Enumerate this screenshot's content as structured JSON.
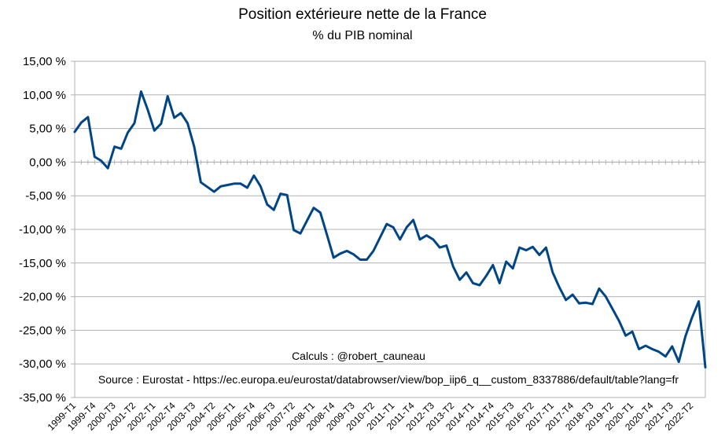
{
  "chart_data": {
    "type": "line",
    "title": "Position extérieure nette de la France",
    "subtitle": "% du PIB nominal",
    "xlabel": "",
    "ylabel": "",
    "ylim": [
      -35,
      15
    ],
    "grid": true,
    "legend": "none",
    "y_tick_labels": [
      "15,00 %",
      "10,00 %",
      "5,00 %",
      "0,00 %",
      "-5,00 %",
      "-10,00 %",
      "-15,00 %",
      "-20,00 %",
      "-25,00 %",
      "-30,00 %",
      "-35,00 %"
    ],
    "y_tick_values": [
      15,
      10,
      5,
      0,
      -5,
      -10,
      -15,
      -20,
      -25,
      -30,
      -35
    ],
    "x_tick_labels": [
      "1999-T1",
      "1999-T4",
      "2000-T3",
      "2001-T2",
      "2002-T1",
      "2002-T4",
      "2003-T3",
      "2004-T2",
      "2005-T1",
      "2005-T4",
      "2006-T3",
      "2007-T2",
      "2008-T1",
      "2008-T4",
      "2009-T3",
      "2010-T2",
      "2011-T1",
      "2011-T4",
      "2012-T3",
      "2013-T2",
      "2014-T1",
      "2014-T4",
      "2015-T3",
      "2016-T2",
      "2017-T1",
      "2017-T4",
      "2018-T3",
      "2019-T2",
      "2020-T1",
      "2020-T4",
      "2021-T3",
      "2022-T2"
    ],
    "series": [
      {
        "color": "#004586",
        "x": [
          "1999-T1",
          "1999-T2",
          "1999-T3",
          "1999-T4",
          "2000-T1",
          "2000-T2",
          "2000-T3",
          "2000-T4",
          "2001-T1",
          "2001-T2",
          "2001-T3",
          "2001-T4",
          "2002-T1",
          "2002-T2",
          "2002-T3",
          "2002-T4",
          "2003-T1",
          "2003-T2",
          "2003-T3",
          "2003-T4",
          "2004-T1",
          "2004-T2",
          "2004-T3",
          "2004-T4",
          "2005-T1",
          "2005-T2",
          "2005-T3",
          "2005-T4",
          "2006-T1",
          "2006-T2",
          "2006-T3",
          "2006-T4",
          "2007-T1",
          "2007-T2",
          "2007-T3",
          "2007-T4",
          "2008-T1",
          "2008-T2",
          "2008-T3",
          "2008-T4",
          "2009-T1",
          "2009-T2",
          "2009-T3",
          "2009-T4",
          "2010-T1",
          "2010-T2",
          "2010-T3",
          "2010-T4",
          "2011-T1",
          "2011-T2",
          "2011-T3",
          "2011-T4",
          "2012-T1",
          "2012-T2",
          "2012-T3",
          "2012-T4",
          "2013-T1",
          "2013-T2",
          "2013-T3",
          "2013-T4",
          "2014-T1",
          "2014-T2",
          "2014-T3",
          "2014-T4",
          "2015-T1",
          "2015-T2",
          "2015-T3",
          "2015-T4",
          "2016-T1",
          "2016-T2",
          "2016-T3",
          "2016-T4",
          "2017-T1",
          "2017-T2",
          "2017-T3",
          "2017-T4",
          "2018-T1",
          "2018-T2",
          "2018-T3",
          "2018-T4",
          "2019-T1",
          "2019-T2",
          "2019-T3",
          "2019-T4",
          "2020-T1",
          "2020-T2",
          "2020-T3",
          "2020-T4",
          "2021-T1",
          "2021-T2",
          "2021-T3",
          "2021-T4",
          "2022-T1",
          "2022-T2",
          "2022-T3",
          "2022-T4"
        ],
        "values": [
          4.5,
          5.9,
          6.7,
          0.8,
          0.2,
          -0.9,
          2.3,
          2.0,
          4.4,
          5.8,
          10.5,
          7.8,
          4.7,
          5.7,
          9.8,
          6.6,
          7.3,
          5.8,
          2.3,
          -3.0,
          -3.7,
          -4.4,
          -3.6,
          -3.4,
          -3.2,
          -3.2,
          -3.8,
          -2.0,
          -3.6,
          -6.3,
          -7.1,
          -4.7,
          -4.9,
          -10.1,
          -10.6,
          -8.7,
          -6.8,
          -7.5,
          -10.8,
          -14.2,
          -13.6,
          -13.2,
          -13.7,
          -14.5,
          -14.5,
          -13.2,
          -11.2,
          -9.2,
          -9.7,
          -11.5,
          -9.7,
          -8.6,
          -11.5,
          -10.9,
          -11.5,
          -12.7,
          -12.4,
          -15.5,
          -17.5,
          -16.4,
          -18.0,
          -18.3,
          -16.9,
          -15.3,
          -18.0,
          -14.8,
          -15.8,
          -12.7,
          -13.1,
          -12.6,
          -13.8,
          -12.7,
          -16.4,
          -18.6,
          -20.5,
          -19.7,
          -21.0,
          -20.9,
          -21.1,
          -18.8,
          -20.0,
          -21.8,
          -23.6,
          -25.8,
          -25.2,
          -27.8,
          -27.3,
          -27.8,
          -28.2,
          -28.9,
          -27.4,
          -29.7,
          -25.9,
          -23.1,
          -20.7,
          -30.5
        ]
      }
    ],
    "annotations": [
      "Calculs : @robert_cauneau",
      "Source : Eurostat - https://ec.europa.eu/eurostat/databrowser/view/bop_iip6_q__custom_8337886/default/table?lang=fr"
    ]
  }
}
